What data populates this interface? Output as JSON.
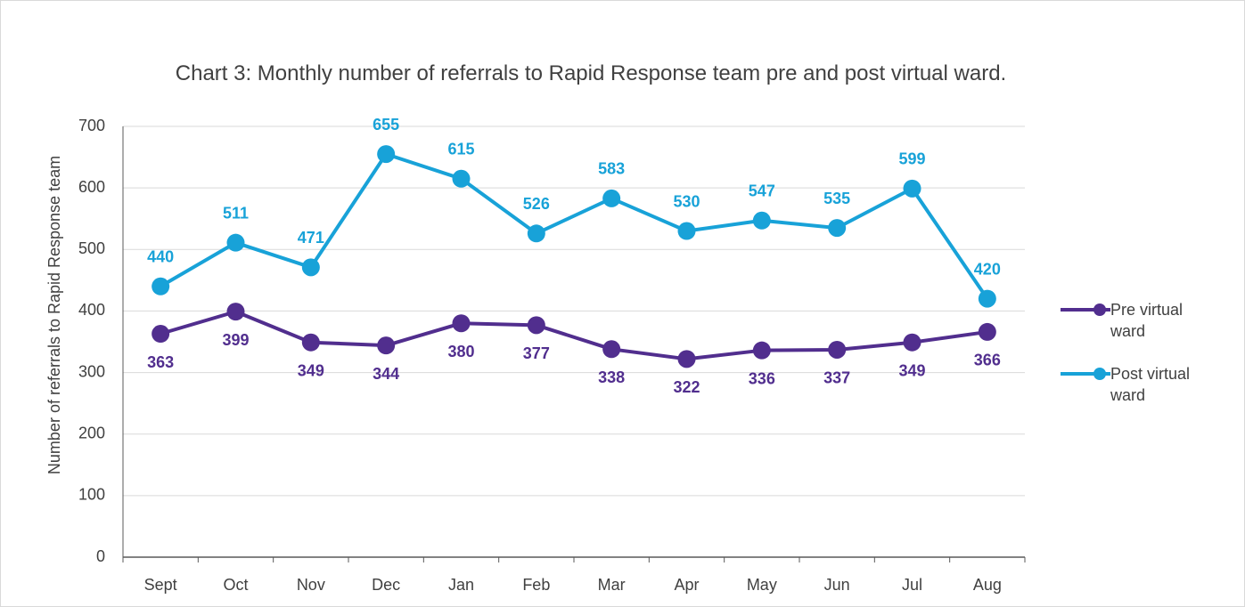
{
  "chart_data": {
    "type": "line",
    "title": "Chart 3: Monthly number of referrals to Rapid Response team pre and post virtual ward.",
    "y_label": "Number of referrals to Rapid Response team",
    "categories": [
      "Sept",
      "Oct",
      "Nov",
      "Dec",
      "Jan",
      "Feb",
      "Mar",
      "Apr",
      "May",
      "Jun",
      "Jul",
      "Aug"
    ],
    "series": [
      {
        "name": "Pre virtual ward",
        "color": "#512e8e",
        "values": [
          363,
          399,
          349,
          344,
          380,
          377,
          338,
          322,
          336,
          337,
          349,
          366
        ]
      },
      {
        "name": "Post virtual ward",
        "color": "#18a2d8",
        "values": [
          440,
          511,
          471,
          655,
          615,
          526,
          583,
          530,
          547,
          535,
          599,
          420
        ]
      }
    ],
    "ylim": [
      0,
      700
    ],
    "yticks": [
      0,
      100,
      200,
      300,
      400,
      500,
      600,
      700
    ],
    "grid": true,
    "legend": "right"
  }
}
